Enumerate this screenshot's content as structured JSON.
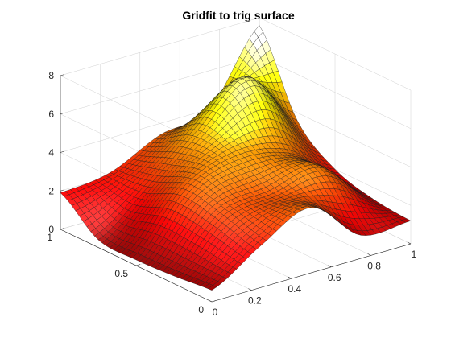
{
  "chart_data": {
    "type": "surface",
    "title": "Gridfit to trig surface",
    "xlabel": "",
    "ylabel": "",
    "zlabel": "",
    "xlim": [
      0,
      1
    ],
    "ylim": [
      0,
      1
    ],
    "zlim": [
      0,
      8
    ],
    "x_ticks": [
      {
        "value": 0,
        "label": "0"
      },
      {
        "value": 0.2,
        "label": "0.2"
      },
      {
        "value": 0.4,
        "label": "0.4"
      },
      {
        "value": 0.6,
        "label": "0.6"
      },
      {
        "value": 0.8,
        "label": "0.8"
      },
      {
        "value": 1,
        "label": "1"
      }
    ],
    "y_ticks": [
      {
        "value": 0,
        "label": "0"
      },
      {
        "value": 0.5,
        "label": "0.5"
      },
      {
        "value": 1,
        "label": "1"
      }
    ],
    "z_ticks": [
      {
        "value": 0,
        "label": "0"
      },
      {
        "value": 2,
        "label": "2"
      },
      {
        "value": 4,
        "label": "4"
      },
      {
        "value": 6,
        "label": "6"
      },
      {
        "value": 8,
        "label": "8"
      }
    ],
    "grid": true,
    "colormap": "hot",
    "grid_resolution": 41,
    "surface_samples": {
      "x": [
        0,
        0.25,
        0.5,
        0.75,
        1
      ],
      "y": [
        0,
        0.25,
        0.5,
        0.75,
        1
      ],
      "z": [
        [
          0.6,
          2.2,
          3.4,
          1.2,
          1.2
        ],
        [
          0.4,
          2.8,
          3.2,
          3.6,
          1.4
        ],
        [
          0.3,
          3.2,
          4.2,
          3.8,
          2.0
        ],
        [
          0.4,
          2.4,
          4.6,
          6.6,
          3.6
        ],
        [
          1.9,
          2.2,
          3.4,
          4.0,
          7.6
        ]
      ]
    }
  }
}
